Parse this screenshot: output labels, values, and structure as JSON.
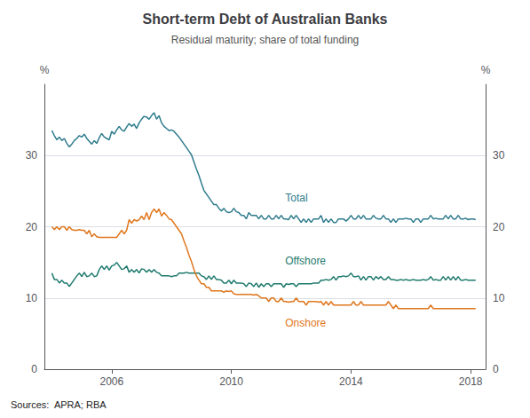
{
  "chart_data": {
    "type": "line",
    "title": "Short-term Debt of Australian Banks",
    "subtitle": "Residual maturity; share of total funding",
    "source": "Sources:  APRA; RBA",
    "ylabel": "%",
    "y2label": "%",
    "xlim": [
      2003.75,
      2018.5
    ],
    "xticks": [
      2006,
      2010,
      2014,
      2018
    ],
    "ylim": [
      0,
      40
    ],
    "yticks": [
      0,
      10,
      20,
      30
    ],
    "y2lim": [
      0,
      40
    ],
    "y2ticks": [
      0,
      10,
      20,
      30
    ],
    "grid": true,
    "x": [
      2004.0,
      2004.083,
      2004.167,
      2004.25,
      2004.333,
      2004.417,
      2004.5,
      2004.583,
      2004.667,
      2004.75,
      2004.833,
      2004.917,
      2005.0,
      2005.083,
      2005.167,
      2005.25,
      2005.333,
      2005.417,
      2005.5,
      2005.583,
      2005.667,
      2005.75,
      2005.833,
      2005.917,
      2006.0,
      2006.083,
      2006.167,
      2006.25,
      2006.333,
      2006.417,
      2006.5,
      2006.583,
      2006.667,
      2006.75,
      2006.833,
      2006.917,
      2007.0,
      2007.083,
      2007.167,
      2007.25,
      2007.333,
      2007.417,
      2007.5,
      2007.583,
      2007.667,
      2007.75,
      2007.833,
      2007.917,
      2008.0,
      2008.083,
      2008.167,
      2008.25,
      2008.333,
      2008.417,
      2008.5,
      2008.583,
      2008.667,
      2008.75,
      2008.833,
      2008.917,
      2009.0,
      2009.083,
      2009.167,
      2009.25,
      2009.333,
      2009.417,
      2009.5,
      2009.583,
      2009.667,
      2009.75,
      2009.833,
      2009.917,
      2010.0,
      2010.083,
      2010.167,
      2010.25,
      2010.333,
      2010.417,
      2010.5,
      2010.583,
      2010.667,
      2010.75,
      2010.833,
      2010.917,
      2011.0,
      2011.083,
      2011.167,
      2011.25,
      2011.333,
      2011.417,
      2011.5,
      2011.583,
      2011.667,
      2011.75,
      2011.833,
      2011.917,
      2012.0,
      2012.083,
      2012.167,
      2012.25,
      2012.333,
      2012.417,
      2012.5,
      2012.583,
      2012.667,
      2012.75,
      2012.833,
      2012.917,
      2013.0,
      2013.083,
      2013.167,
      2013.25,
      2013.333,
      2013.417,
      2013.5,
      2013.583,
      2013.667,
      2013.75,
      2013.833,
      2013.917,
      2014.0,
      2014.083,
      2014.167,
      2014.25,
      2014.333,
      2014.417,
      2014.5,
      2014.583,
      2014.667,
      2014.75,
      2014.833,
      2014.917,
      2015.0,
      2015.083,
      2015.167,
      2015.25,
      2015.333,
      2015.417,
      2015.5,
      2015.583,
      2015.667,
      2015.75,
      2015.833,
      2015.917,
      2016.0,
      2016.083,
      2016.167,
      2016.25,
      2016.333,
      2016.417,
      2016.5,
      2016.583,
      2016.667,
      2016.75,
      2016.833,
      2016.917,
      2017.0,
      2017.083,
      2017.167,
      2017.25,
      2017.333,
      2017.417,
      2017.5,
      2017.583,
      2017.667,
      2017.75,
      2017.833,
      2017.917,
      2018.0,
      2018.083,
      2018.167
    ],
    "series": [
      {
        "name": "Total",
        "color": "#2e7b8c",
        "values": [
          33.5,
          32.8,
          32.2,
          32.6,
          32.1,
          32.4,
          31.7,
          31.2,
          31.6,
          32.1,
          32.4,
          32.8,
          32.6,
          33.0,
          32.4,
          32.0,
          31.6,
          32.1,
          31.7,
          32.5,
          33.1,
          32.6,
          32.4,
          32.2,
          33.4,
          33.0,
          33.6,
          34.1,
          33.6,
          33.4,
          34.0,
          34.5,
          34.1,
          34.4,
          33.8,
          34.6,
          35.1,
          35.5,
          35.4,
          35.1,
          35.6,
          36.0,
          35.1,
          35.6,
          34.6,
          34.1,
          33.8,
          33.5,
          33.6,
          33.4,
          33.0,
          32.6,
          32.1,
          31.6,
          31.1,
          30.6,
          30.1,
          29.1,
          28.1,
          27.2,
          26.1,
          25.1,
          24.6,
          24.1,
          23.6,
          23.1,
          23.1,
          22.6,
          22.2,
          22.6,
          22.1,
          22.0,
          22.1,
          22.6,
          22.1,
          22.0,
          21.6,
          21.6,
          21.1,
          22.0,
          21.6,
          21.6,
          21.6,
          21.1,
          21.6,
          21.1,
          21.1,
          21.6,
          21.1,
          21.1,
          21.6,
          21.1,
          21.6,
          21.1,
          21.1,
          21.0,
          21.6,
          21.1,
          21.6,
          21.1,
          20.6,
          21.1,
          20.6,
          21.1,
          20.6,
          21.1,
          21.1,
          21.1,
          21.6,
          20.6,
          21.1,
          20.6,
          21.1,
          20.6,
          20.6,
          21.1,
          21.1,
          21.1,
          20.8,
          21.1,
          21.6,
          21.1,
          21.1,
          21.6,
          21.1,
          21.6,
          21.1,
          21.1,
          21.1,
          21.6,
          21.2,
          21.1,
          21.1,
          21.6,
          21.1,
          21.1,
          20.6,
          21.1,
          20.6,
          21.1,
          21.1,
          21.1,
          21.2,
          21.1,
          21.1,
          20.6,
          21.1,
          21.1,
          20.6,
          21.1,
          21.1,
          21.1,
          21.6,
          21.1,
          21.2,
          21.1,
          21.1,
          21.1,
          21.6,
          21.1,
          21.6,
          21.1,
          21.1,
          21.6,
          21.1,
          21.1,
          21.2,
          21.0,
          21.1,
          21.1,
          21.0
        ]
      },
      {
        "name": "Offshore",
        "color": "#1f7a6e",
        "values": [
          13.5,
          12.6,
          12.6,
          12.1,
          12.5,
          12.1,
          12.1,
          11.6,
          12.1,
          12.6,
          13.1,
          13.5,
          13.0,
          13.6,
          13.0,
          13.1,
          13.5,
          13.0,
          13.1,
          14.0,
          14.5,
          14.0,
          14.5,
          13.9,
          14.5,
          14.6,
          15.0,
          14.5,
          14.0,
          14.1,
          14.5,
          13.6,
          14.0,
          13.6,
          14.0,
          13.5,
          14.1,
          14.0,
          13.6,
          14.0,
          13.6,
          14.0,
          13.6,
          13.5,
          13.1,
          13.1,
          13.1,
          13.1,
          13.0,
          13.1,
          13.1,
          13.5,
          13.5,
          13.5,
          13.6,
          13.5,
          13.5,
          13.5,
          13.5,
          13.5,
          13.1,
          13.0,
          12.6,
          13.1,
          12.6,
          13.1,
          12.6,
          12.6,
          12.5,
          12.1,
          12.1,
          12.5,
          12.0,
          12.5,
          12.1,
          12.1,
          12.1,
          12.0,
          11.6,
          12.1,
          12.0,
          11.6,
          12.1,
          11.5,
          12.0,
          11.6,
          12.0,
          12.0,
          11.6,
          12.0,
          12.0,
          12.0,
          12.0,
          11.5,
          12.0,
          11.9,
          12.0,
          12.0,
          11.6,
          12.0,
          12.0,
          12.0,
          12.0,
          12.0,
          12.0,
          12.1,
          12.1,
          12.1,
          12.5,
          12.5,
          12.6,
          12.5,
          12.6,
          13.0,
          12.5,
          13.0,
          13.0,
          13.1,
          13.0,
          13.1,
          13.5,
          13.0,
          13.0,
          13.1,
          12.5,
          13.0,
          12.5,
          13.0,
          13.0,
          12.5,
          13.0,
          12.7,
          13.0,
          12.6,
          12.6,
          13.0,
          12.6,
          12.6,
          12.5,
          12.5,
          12.6,
          12.5,
          12.6,
          12.5,
          12.5,
          12.6,
          12.5,
          12.5,
          12.5,
          12.6,
          12.5,
          12.6,
          13.0,
          12.5,
          12.6,
          12.5,
          12.5,
          13.0,
          12.5,
          13.0,
          12.5,
          13.0,
          12.5,
          13.0,
          12.5,
          12.5,
          12.6,
          12.5,
          12.5,
          12.5,
          12.5
        ]
      },
      {
        "name": "Onshore",
        "color": "#e07820",
        "values": [
          20.0,
          19.6,
          20.0,
          19.6,
          20.0,
          20.0,
          19.5,
          20.0,
          19.6,
          19.5,
          19.5,
          19.6,
          19.5,
          19.5,
          19.0,
          19.5,
          18.6,
          19.0,
          18.6,
          18.5,
          18.5,
          18.5,
          18.5,
          18.5,
          18.5,
          18.5,
          18.5,
          19.0,
          19.5,
          19.0,
          19.5,
          21.0,
          20.5,
          21.0,
          20.8,
          21.0,
          21.5,
          21.0,
          22.0,
          21.0,
          22.0,
          22.5,
          22.0,
          22.5,
          21.5,
          22.0,
          21.6,
          21.1,
          21.0,
          20.5,
          20.0,
          19.5,
          19.0,
          18.0,
          17.1,
          16.0,
          15.1,
          14.0,
          13.1,
          12.5,
          12.0,
          12.0,
          11.5,
          11.5,
          11.0,
          11.0,
          11.0,
          11.0,
          11.0,
          10.8,
          11.0,
          10.9,
          11.0,
          10.6,
          10.5,
          10.5,
          10.5,
          10.5,
          10.5,
          10.5,
          10.5,
          10.4,
          10.5,
          10.3,
          10.0,
          10.0,
          10.0,
          9.5,
          10.0,
          10.0,
          9.5,
          9.5,
          10.0,
          9.5,
          9.5,
          9.4,
          9.5,
          9.5,
          10.0,
          9.5,
          9.5,
          9.5,
          9.0,
          9.5,
          9.5,
          9.5,
          9.5,
          9.4,
          9.5,
          9.0,
          9.5,
          9.0,
          9.5,
          9.0,
          9.0,
          9.0,
          9.0,
          9.0,
          9.0,
          9.0,
          9.0,
          9.5,
          9.0,
          9.0,
          9.5,
          9.0,
          9.0,
          9.0,
          9.0,
          9.0,
          9.0,
          9.0,
          9.0,
          9.0,
          9.0,
          9.5,
          9.0,
          8.5,
          9.0,
          8.5,
          8.5,
          8.5,
          8.5,
          8.5,
          8.5,
          8.5,
          8.5,
          8.5,
          8.5,
          8.5,
          8.5,
          8.5,
          9.0,
          8.5,
          8.5,
          8.5,
          8.5,
          8.5,
          8.5,
          8.5,
          8.5,
          8.5,
          8.5,
          8.5,
          8.5,
          8.5,
          8.5,
          8.5,
          8.5,
          8.5,
          8.5
        ]
      }
    ],
    "annotations": [
      {
        "text": "Total",
        "x": 2011.8,
        "y": 24.0,
        "color": "#2e7b8c"
      },
      {
        "text": "Offshore",
        "x": 2011.8,
        "y": 15.2,
        "color": "#1f7a6e"
      },
      {
        "text": "Onshore",
        "x": 2011.8,
        "y": 6.5,
        "color": "#e07820"
      }
    ]
  }
}
